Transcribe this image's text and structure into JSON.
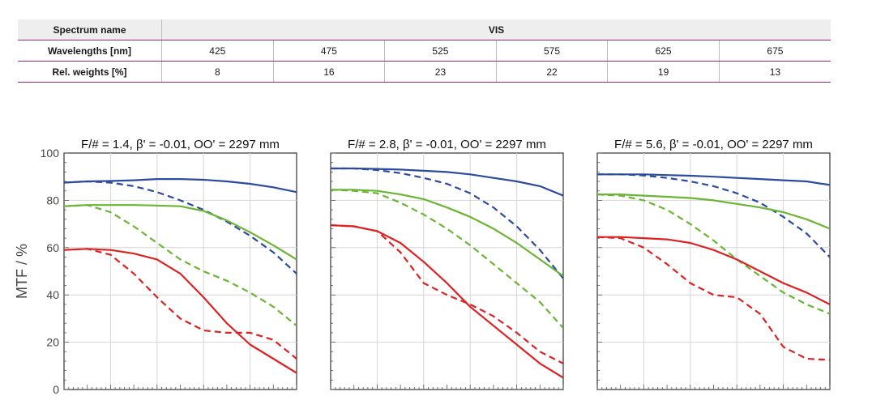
{
  "spectrum_table": {
    "spectrum_name_label": "Spectrum name",
    "spectrum_value": "VIS",
    "wavelengths_label": "Wavelengths [nm]",
    "wavelengths": [
      "425",
      "475",
      "525",
      "575",
      "625",
      "675"
    ],
    "weights_label": "Rel. weights [%]",
    "weights": [
      "8",
      "16",
      "23",
      "22",
      "19",
      "13"
    ]
  },
  "chart_data": [
    {
      "type": "line",
      "title": "F/# = 1.4, β' = -0.01, OO' = 2297 mm",
      "ylabel": "MTF / %",
      "ylim": [
        0,
        100
      ],
      "yticks": [
        0,
        20,
        40,
        60,
        80,
        100
      ],
      "grid": true,
      "series": [
        {
          "color": "#2b4aa0",
          "dashed": false,
          "x": [
            0,
            10,
            20,
            30,
            40,
            50,
            60,
            70,
            80,
            90,
            100
          ],
          "y": [
            87.5,
            88,
            88.2,
            88.5,
            89,
            89,
            88.7,
            88,
            87,
            85.5,
            83.5
          ]
        },
        {
          "color": "#2b4aa0",
          "dashed": true,
          "x": [
            0,
            10,
            20,
            30,
            40,
            50,
            60,
            70,
            80,
            90,
            100
          ],
          "y": [
            87.5,
            88,
            87.5,
            86,
            83.5,
            80,
            76,
            71,
            65,
            58,
            49
          ]
        },
        {
          "color": "#6ab534",
          "dashed": false,
          "x": [
            0,
            10,
            20,
            30,
            40,
            50,
            60,
            70,
            80,
            90,
            100
          ],
          "y": [
            77.5,
            78,
            78,
            78,
            77.8,
            77.5,
            75.5,
            71.5,
            66.5,
            61,
            55
          ]
        },
        {
          "color": "#6ab534",
          "dashed": true,
          "x": [
            0,
            10,
            20,
            30,
            40,
            50,
            60,
            70,
            80,
            90,
            100
          ],
          "y": [
            77.5,
            78,
            75,
            69,
            62,
            55,
            50,
            46,
            41,
            35,
            27
          ]
        },
        {
          "color": "#dd2222",
          "dashed": false,
          "x": [
            0,
            10,
            20,
            30,
            40,
            50,
            60,
            70,
            80,
            90,
            100
          ],
          "y": [
            59,
            59.5,
            59,
            57.5,
            55,
            49,
            39,
            28,
            19,
            13,
            7
          ]
        },
        {
          "color": "#dd2222",
          "dashed": true,
          "x": [
            0,
            10,
            20,
            30,
            40,
            50,
            60,
            70,
            80,
            90,
            100
          ],
          "y": [
            59,
            59.5,
            57,
            49,
            39,
            30,
            25,
            24,
            24,
            21,
            13
          ]
        }
      ]
    },
    {
      "type": "line",
      "title": "F/# = 2.8, β' = -0.01, OO' = 2297 mm",
      "ylim": [
        0,
        100
      ],
      "grid": true,
      "series": [
        {
          "color": "#2b4aa0",
          "dashed": false,
          "x": [
            0,
            10,
            20,
            30,
            40,
            50,
            60,
            70,
            80,
            90,
            100
          ],
          "y": [
            93.5,
            93.5,
            93.3,
            93,
            92.5,
            92,
            91,
            89.5,
            88,
            86,
            82
          ]
        },
        {
          "color": "#2b4aa0",
          "dashed": true,
          "x": [
            0,
            10,
            20,
            30,
            40,
            50,
            60,
            70,
            80,
            90,
            100
          ],
          "y": [
            93.5,
            93.5,
            92.8,
            91.5,
            89.5,
            87,
            83,
            77,
            69,
            59,
            47
          ]
        },
        {
          "color": "#6ab534",
          "dashed": false,
          "x": [
            0,
            10,
            20,
            30,
            40,
            50,
            60,
            70,
            80,
            90,
            100
          ],
          "y": [
            84.5,
            84.5,
            84,
            82.5,
            80.5,
            77,
            73,
            68,
            62,
            55,
            48
          ]
        },
        {
          "color": "#6ab534",
          "dashed": true,
          "x": [
            0,
            10,
            20,
            30,
            40,
            50,
            60,
            70,
            80,
            90,
            100
          ],
          "y": [
            84.5,
            84,
            83,
            79,
            74,
            68,
            61,
            53,
            45,
            37,
            26
          ]
        },
        {
          "color": "#dd2222",
          "dashed": false,
          "x": [
            0,
            10,
            20,
            30,
            40,
            50,
            60,
            70,
            80,
            90,
            100
          ],
          "y": [
            69.5,
            69,
            67,
            62,
            54,
            45,
            35,
            27,
            19,
            11,
            5
          ]
        },
        {
          "color": "#dd2222",
          "dashed": true,
          "x": [
            0,
            10,
            20,
            30,
            40,
            50,
            60,
            70,
            80,
            90,
            100
          ],
          "y": [
            69.5,
            69,
            67,
            58,
            45,
            40,
            36,
            31,
            24,
            16,
            11
          ]
        }
      ]
    },
    {
      "type": "line",
      "title": "F/# = 5.6, β' = -0.01, OO' = 2297 mm",
      "ylim": [
        0,
        100
      ],
      "grid": true,
      "series": [
        {
          "color": "#2b4aa0",
          "dashed": false,
          "x": [
            0,
            10,
            20,
            30,
            40,
            50,
            60,
            70,
            80,
            90,
            100
          ],
          "y": [
            91,
            91,
            91,
            90.7,
            90.4,
            90,
            89.5,
            89,
            88.5,
            88,
            86.5
          ]
        },
        {
          "color": "#2b4aa0",
          "dashed": true,
          "x": [
            0,
            10,
            20,
            30,
            40,
            50,
            60,
            70,
            80,
            90,
            100
          ],
          "y": [
            91,
            91,
            90.5,
            89.5,
            88,
            86,
            83,
            79,
            73,
            66,
            56
          ]
        },
        {
          "color": "#6ab534",
          "dashed": false,
          "x": [
            0,
            10,
            20,
            30,
            40,
            50,
            60,
            70,
            80,
            90,
            100
          ],
          "y": [
            82.5,
            82.5,
            82,
            81.5,
            81,
            80,
            78.5,
            77,
            75,
            72,
            68
          ]
        },
        {
          "color": "#6ab534",
          "dashed": true,
          "x": [
            0,
            10,
            20,
            30,
            40,
            50,
            60,
            70,
            80,
            90,
            100
          ],
          "y": [
            82.5,
            82,
            80,
            76,
            70,
            63,
            55,
            48,
            41,
            36,
            32
          ]
        },
        {
          "color": "#dd2222",
          "dashed": false,
          "x": [
            0,
            10,
            20,
            30,
            40,
            50,
            60,
            70,
            80,
            90,
            100
          ],
          "y": [
            64.5,
            64.5,
            64,
            63.5,
            62,
            59,
            55,
            50,
            45,
            41,
            36
          ]
        },
        {
          "color": "#dd2222",
          "dashed": true,
          "x": [
            0,
            10,
            20,
            30,
            40,
            50,
            60,
            70,
            80,
            90,
            100
          ],
          "y": [
            64.5,
            64,
            60,
            53,
            45,
            40,
            39,
            32,
            18,
            13,
            12.5
          ]
        }
      ]
    }
  ]
}
